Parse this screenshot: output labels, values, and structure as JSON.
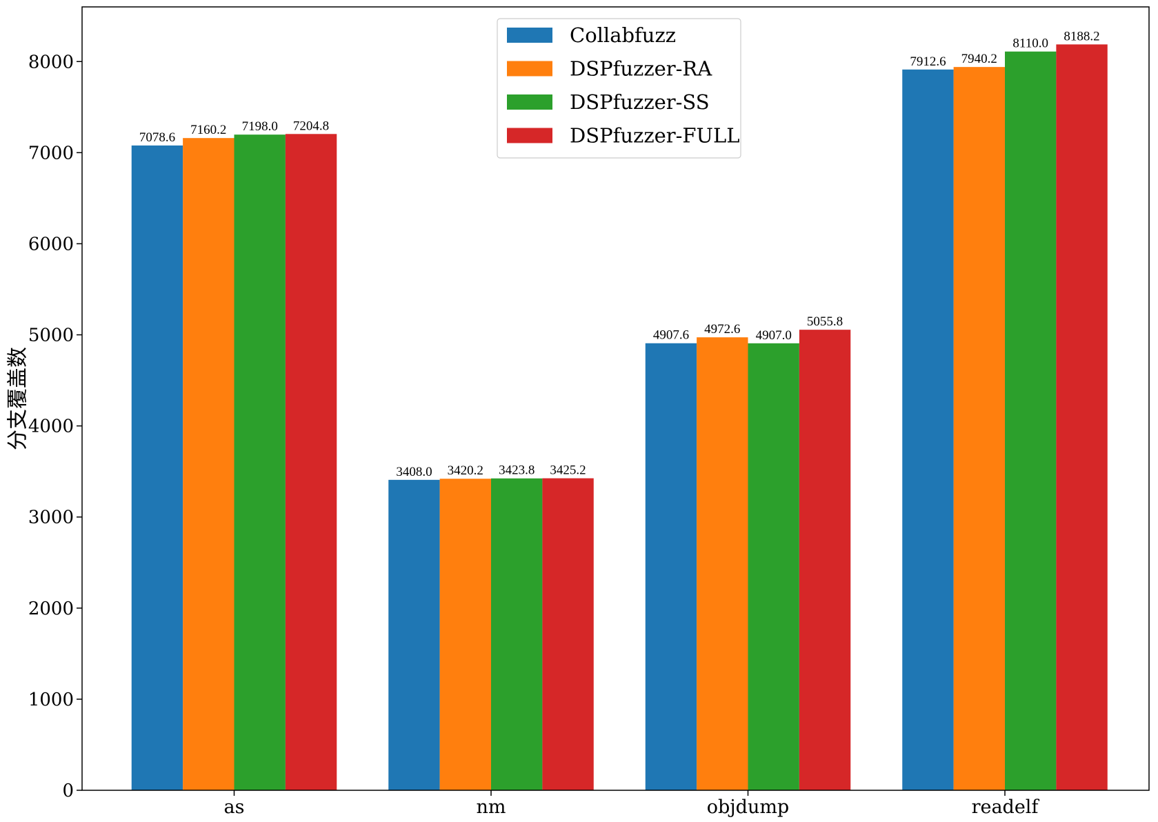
{
  "chart_data": {
    "type": "bar",
    "title": "",
    "xlabel": "",
    "ylabel": "分支覆盖数",
    "categories": [
      "as",
      "nm",
      "objdump",
      "readelf"
    ],
    "series": [
      {
        "name": "Collabfuzz",
        "color": "#1f77b4",
        "values": [
          7078.6,
          3408.0,
          4907.6,
          7912.6
        ],
        "labels": [
          "7078.6",
          "3408.0",
          "4907.6",
          "7912.6"
        ]
      },
      {
        "name": "DSPfuzzer-RA",
        "color": "#ff7f0e",
        "values": [
          7160.2,
          3420.2,
          4972.6,
          7940.2
        ],
        "labels": [
          "7160.2",
          "3420.2",
          "4972.6",
          "7940.2"
        ]
      },
      {
        "name": "DSPfuzzer-SS",
        "color": "#2ca02c",
        "values": [
          7198.0,
          3423.8,
          4907.0,
          8110.0
        ],
        "labels": [
          "7198.0",
          "3423.8",
          "4907.0",
          "8110.0"
        ]
      },
      {
        "name": "DSPfuzzer-FULL",
        "color": "#d62728",
        "values": [
          7204.8,
          3425.2,
          5055.8,
          8188.2
        ],
        "labels": [
          "7204.8",
          "3425.2",
          "5055.8",
          "8188.2"
        ]
      }
    ],
    "yticks": [
      "0",
      "1000",
      "2000",
      "3000",
      "4000",
      "5000",
      "6000",
      "7000",
      "8000"
    ],
    "ylim": [
      0,
      8600
    ],
    "grid": false,
    "legend_position": "top-center"
  }
}
